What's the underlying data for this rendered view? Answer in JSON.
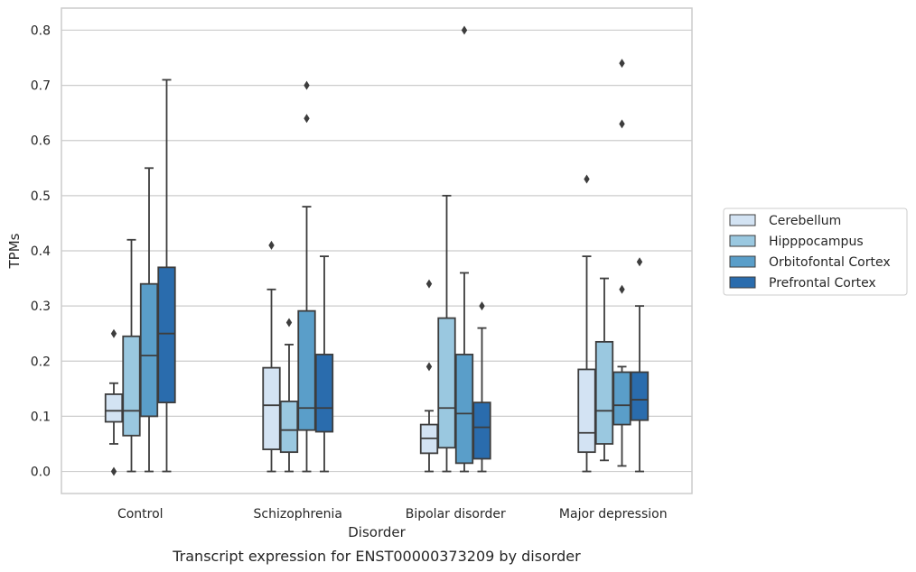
{
  "chart_data": {
    "type": "box",
    "xlabel": "Disorder",
    "ylabel": "TPMs",
    "caption": "Transcript expression for ENST00000373209 by disorder",
    "ylim": [
      -0.04,
      0.84
    ],
    "yticks": [
      "0.0",
      "0.1",
      "0.2",
      "0.3",
      "0.4",
      "0.5",
      "0.6",
      "0.7",
      "0.8"
    ],
    "ytick_values": [
      0.0,
      0.1,
      0.2,
      0.3,
      0.4,
      0.5,
      0.6,
      0.7,
      0.8
    ],
    "grid": "horizontal",
    "legend_position": "right",
    "categories": [
      "Control",
      "Schizophrenia",
      "Bipolar disorder",
      "Major depression"
    ],
    "series": [
      {
        "name": "Cerebellum",
        "color": "#d3e3f3",
        "boxes": [
          {
            "whislo": 0.05,
            "q1": 0.09,
            "med": 0.11,
            "q3": 0.14,
            "whishi": 0.16,
            "fliers": [
              0.25,
              0.0
            ]
          },
          {
            "whislo": 0.0,
            "q1": 0.04,
            "med": 0.12,
            "q3": 0.188,
            "whishi": 0.33,
            "fliers": [
              0.41
            ]
          },
          {
            "whislo": 0.0,
            "q1": 0.033,
            "med": 0.06,
            "q3": 0.085,
            "whishi": 0.11,
            "fliers": [
              0.19,
              0.34
            ]
          },
          {
            "whislo": 0.0,
            "q1": 0.035,
            "med": 0.07,
            "q3": 0.185,
            "whishi": 0.39,
            "fliers": [
              0.53
            ]
          }
        ]
      },
      {
        "name": "Hipppocampus",
        "color": "#9ac8e0",
        "boxes": [
          {
            "whislo": 0.0,
            "q1": 0.065,
            "med": 0.11,
            "q3": 0.245,
            "whishi": 0.42,
            "fliers": []
          },
          {
            "whislo": 0.0,
            "q1": 0.035,
            "med": 0.075,
            "q3": 0.127,
            "whishi": 0.23,
            "fliers": [
              0.27
            ]
          },
          {
            "whislo": 0.0,
            "q1": 0.043,
            "med": 0.115,
            "q3": 0.278,
            "whishi": 0.5,
            "fliers": []
          },
          {
            "whislo": 0.02,
            "q1": 0.05,
            "med": 0.11,
            "q3": 0.235,
            "whishi": 0.35,
            "fliers": []
          }
        ]
      },
      {
        "name": "Orbitofontal Cortex",
        "color": "#5a9ec9",
        "boxes": [
          {
            "whislo": 0.0,
            "q1": 0.1,
            "med": 0.21,
            "q3": 0.34,
            "whishi": 0.55,
            "fliers": []
          },
          {
            "whislo": 0.0,
            "q1": 0.075,
            "med": 0.115,
            "q3": 0.291,
            "whishi": 0.48,
            "fliers": [
              0.64,
              0.7
            ]
          },
          {
            "whislo": 0.0,
            "q1": 0.015,
            "med": 0.105,
            "q3": 0.212,
            "whishi": 0.36,
            "fliers": [
              0.8
            ]
          },
          {
            "whislo": 0.01,
            "q1": 0.085,
            "med": 0.12,
            "q3": 0.18,
            "whishi": 0.19,
            "fliers": [
              0.33,
              0.63,
              0.74
            ]
          }
        ]
      },
      {
        "name": "Prefrontal Cortex",
        "color": "#2a6cad",
        "boxes": [
          {
            "whislo": 0.0,
            "q1": 0.125,
            "med": 0.25,
            "q3": 0.37,
            "whishi": 0.71,
            "fliers": []
          },
          {
            "whislo": 0.0,
            "q1": 0.072,
            "med": 0.115,
            "q3": 0.212,
            "whishi": 0.39,
            "fliers": []
          },
          {
            "whislo": 0.0,
            "q1": 0.023,
            "med": 0.08,
            "q3": 0.125,
            "whishi": 0.26,
            "fliers": [
              0.3
            ]
          },
          {
            "whislo": 0.0,
            "q1": 0.093,
            "med": 0.13,
            "q3": 0.18,
            "whishi": 0.3,
            "fliers": [
              0.38
            ]
          }
        ]
      }
    ]
  }
}
